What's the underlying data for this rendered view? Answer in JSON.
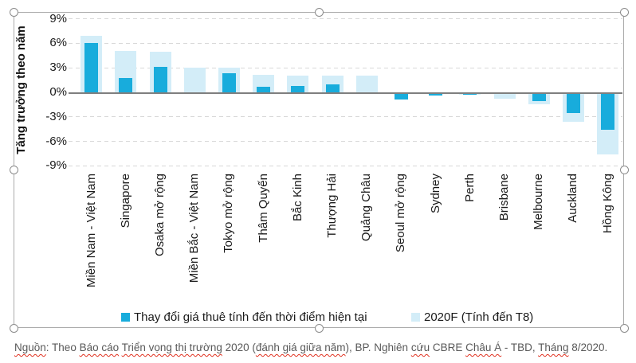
{
  "chart_data": {
    "type": "bar",
    "title": "",
    "ylabel": "Tăng trưởng theo năm",
    "ylim": [
      -9,
      9
    ],
    "y_ticks": [
      9,
      6,
      3,
      0,
      -3,
      -6,
      -9
    ],
    "y_tick_labels": [
      "9%",
      "6%",
      "3%",
      "0%",
      "-3%",
      "-6%",
      "-9%"
    ],
    "grid": "horizontal-dashed",
    "legend_position": "bottom",
    "categories": [
      "Miền Nam - Việt Nam",
      "Singapore",
      "Osaka mở rộng",
      "Miền Bắc - Việt Nam",
      "Tokyo mở rộng",
      "Thâm Quyến",
      "Bắc Kinh",
      "Thượng Hải",
      "Quảng Châu",
      "Seoul mở rộng",
      "Sydney",
      "Perth",
      "Brisbane",
      "Melbourne",
      "Auckland",
      "Hồng Kông"
    ],
    "series": [
      {
        "name": "Thay đổi giá thuê tính đến thời điểm hiện tại",
        "color": "#18ACDC",
        "values": [
          6.0,
          1.8,
          3.1,
          0,
          2.3,
          0.7,
          0.8,
          1.0,
          0,
          -0.7,
          -0.2,
          -0.1,
          0,
          -0.9,
          -2.4,
          -4.4
        ]
      },
      {
        "name": "2020F (Tính đến T8)",
        "color": "#D3EDF8",
        "values": [
          6.9,
          5.1,
          5.0,
          3.0,
          3.0,
          2.1,
          2.0,
          2.0,
          2.0,
          0,
          0,
          -0.1,
          -0.6,
          -1.3,
          -3.5,
          -7.5
        ]
      }
    ]
  },
  "source": {
    "segments": [
      {
        "text": "Nguồn",
        "misspelled": true
      },
      {
        "text": ": Theo ",
        "misspelled": false
      },
      {
        "text": "Báo cáo",
        "misspelled": true
      },
      {
        "text": " ",
        "misspelled": false
      },
      {
        "text": "Triển vọng thị trường",
        "misspelled": true
      },
      {
        "text": " 2020 (",
        "misspelled": false
      },
      {
        "text": "đánh giá giữa năm",
        "misspelled": true
      },
      {
        "text": "), BP. Nghiên ",
        "misspelled": false
      },
      {
        "text": "cứu",
        "misspelled": true
      },
      {
        "text": " CBRE ",
        "misspelled": false
      },
      {
        "text": "Châu Á",
        "misspelled": true
      },
      {
        "text": " - TBD, ",
        "misspelled": false
      },
      {
        "text": "Tháng",
        "misspelled": true
      },
      {
        "text": " 8/2020.",
        "misspelled": false
      }
    ]
  }
}
